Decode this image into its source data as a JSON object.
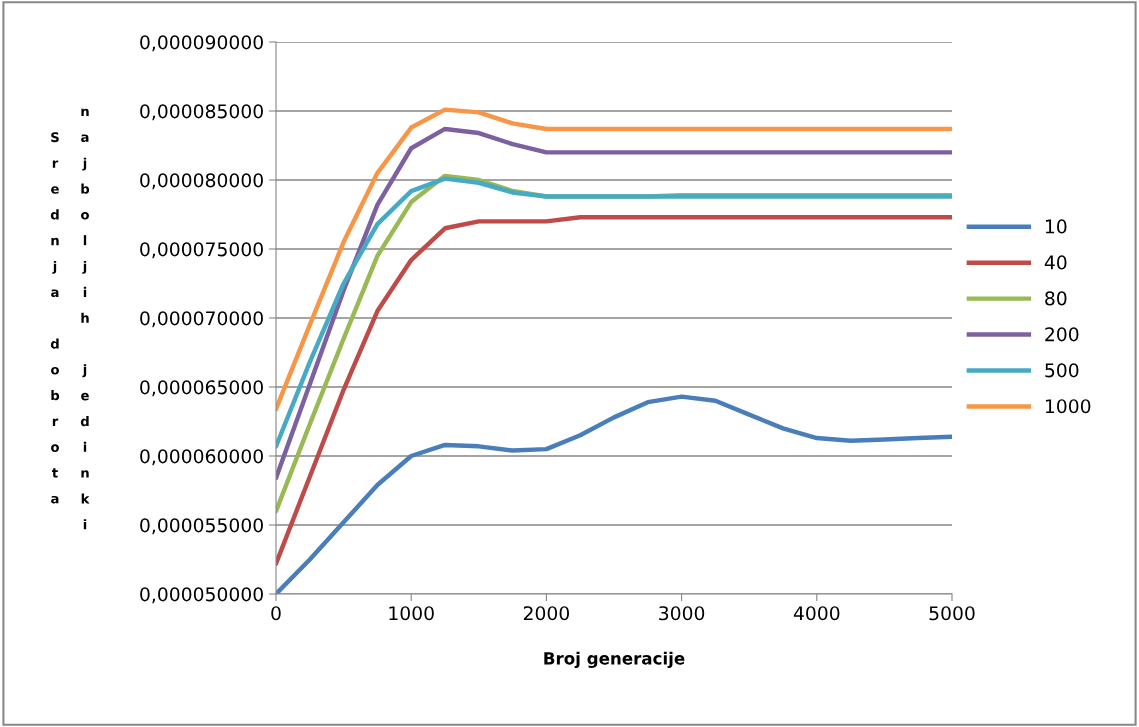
{
  "chart_data": {
    "type": "line",
    "xlabel": "Broj generacije",
    "ylabel": "Srednja dobrota najboljih jedinki",
    "x": [
      0,
      250,
      500,
      750,
      1000,
      1250,
      1500,
      1750,
      2000,
      2250,
      2500,
      2750,
      3000,
      3250,
      3500,
      3750,
      4000,
      4250,
      4500,
      4750,
      5000
    ],
    "series": [
      {
        "name": "10",
        "color": "#4a7ebb",
        "values": [
          5e-05,
          5.25e-05,
          5.52e-05,
          5.79e-05,
          6e-05,
          6.08e-05,
          6.07e-05,
          6.04e-05,
          6.05e-05,
          6.15e-05,
          6.28e-05,
          6.39e-05,
          6.43e-05,
          6.4e-05,
          6.3e-05,
          6.2e-05,
          6.13e-05,
          6.11e-05,
          6.12e-05,
          6.13e-05,
          6.14e-05
        ]
      },
      {
        "name": "40",
        "color": "#be4b48",
        "values": [
          5.22e-05,
          5.85e-05,
          6.48e-05,
          7.05e-05,
          7.42e-05,
          7.65e-05,
          7.7e-05,
          7.7e-05,
          7.7e-05,
          7.73e-05,
          7.73e-05,
          7.73e-05,
          7.73e-05,
          7.73e-05,
          7.73e-05,
          7.73e-05,
          7.73e-05,
          7.73e-05,
          7.73e-05,
          7.73e-05,
          7.73e-05
        ]
      },
      {
        "name": "80",
        "color": "#98b954",
        "values": [
          5.6e-05,
          6.23e-05,
          6.85e-05,
          7.45e-05,
          7.84e-05,
          8.03e-05,
          8e-05,
          7.92e-05,
          7.88e-05,
          7.88e-05,
          7.88e-05,
          7.88e-05,
          7.89e-05,
          7.89e-05,
          7.89e-05,
          7.89e-05,
          7.89e-05,
          7.89e-05,
          7.89e-05,
          7.89e-05,
          7.89e-05
        ]
      },
      {
        "name": "200",
        "color": "#7d60a0",
        "values": [
          5.84e-05,
          6.52e-05,
          7.2e-05,
          7.82e-05,
          8.23e-05,
          8.37e-05,
          8.34e-05,
          8.26e-05,
          8.2e-05,
          8.2e-05,
          8.2e-05,
          8.2e-05,
          8.2e-05,
          8.2e-05,
          8.2e-05,
          8.2e-05,
          8.2e-05,
          8.2e-05,
          8.2e-05,
          8.2e-05,
          8.2e-05
        ]
      },
      {
        "name": "500",
        "color": "#46aac5",
        "values": [
          6.07e-05,
          6.68e-05,
          7.25e-05,
          7.68e-05,
          7.92e-05,
          8.01e-05,
          7.98e-05,
          7.91e-05,
          7.88e-05,
          7.88e-05,
          7.88e-05,
          7.88e-05,
          7.88e-05,
          7.88e-05,
          7.88e-05,
          7.88e-05,
          7.88e-05,
          7.88e-05,
          7.88e-05,
          7.88e-05,
          7.88e-05
        ]
      },
      {
        "name": "1000",
        "color": "#f79646",
        "values": [
          6.34e-05,
          6.95e-05,
          7.55e-05,
          8.05e-05,
          8.38e-05,
          8.51e-05,
          8.49e-05,
          8.41e-05,
          8.37e-05,
          8.37e-05,
          8.37e-05,
          8.37e-05,
          8.37e-05,
          8.37e-05,
          8.37e-05,
          8.37e-05,
          8.37e-05,
          8.37e-05,
          8.37e-05,
          8.37e-05,
          8.37e-05
        ]
      }
    ],
    "xlim": [
      0,
      5000
    ],
    "xticks": [
      0,
      1000,
      2000,
      3000,
      4000,
      5000
    ],
    "ylim": [
      5e-05,
      9e-05
    ],
    "yticks": [
      {
        "value": 5e-05,
        "label": "0,000050000"
      },
      {
        "value": 5.5e-05,
        "label": "0,000055000"
      },
      {
        "value": 6e-05,
        "label": "0,000060000"
      },
      {
        "value": 6.5e-05,
        "label": "0,000065000"
      },
      {
        "value": 7e-05,
        "label": "0,000070000"
      },
      {
        "value": 7.5e-05,
        "label": "0,000075000"
      },
      {
        "value": 8e-05,
        "label": "0,000080000"
      },
      {
        "value": 8.5e-05,
        "label": "0,000085000"
      },
      {
        "value": 9e-05,
        "label": "0,000090000"
      }
    ],
    "grid": "y",
    "legend": "right",
    "marker": "none",
    "line_style": "solid"
  }
}
